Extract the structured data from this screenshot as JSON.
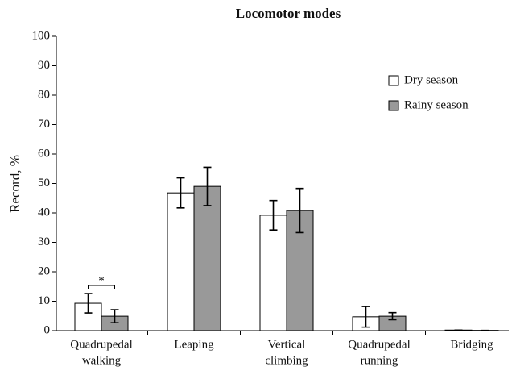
{
  "chart_data": {
    "type": "bar",
    "title": "Locomotor modes",
    "y_label": "Record, %",
    "categories": [
      [
        "Quadrupedal",
        "walking"
      ],
      [
        "Leaping"
      ],
      [
        "Vertical",
        "climbing"
      ],
      [
        "Quadrupedal",
        "running"
      ],
      [
        "Bridging"
      ]
    ],
    "series": [
      {
        "name": "Dry season",
        "color": "#ffffff",
        "values": [
          9.3,
          46.8,
          39.2,
          4.7,
          0.2
        ],
        "errors": [
          3.3,
          5.1,
          5.0,
          3.5,
          0
        ]
      },
      {
        "name": "Rainy season",
        "color": "#999999",
        "values": [
          4.9,
          49.0,
          40.8,
          4.9,
          0.1
        ],
        "errors": [
          2.2,
          6.5,
          7.5,
          1.2,
          0
        ]
      }
    ],
    "ylim": [
      0,
      100
    ],
    "yticks": [
      0,
      10,
      20,
      30,
      40,
      50,
      60,
      70,
      80,
      90,
      100
    ],
    "legend": "upper right",
    "annotations": [
      {
        "text": "*",
        "category": 0
      }
    ]
  }
}
